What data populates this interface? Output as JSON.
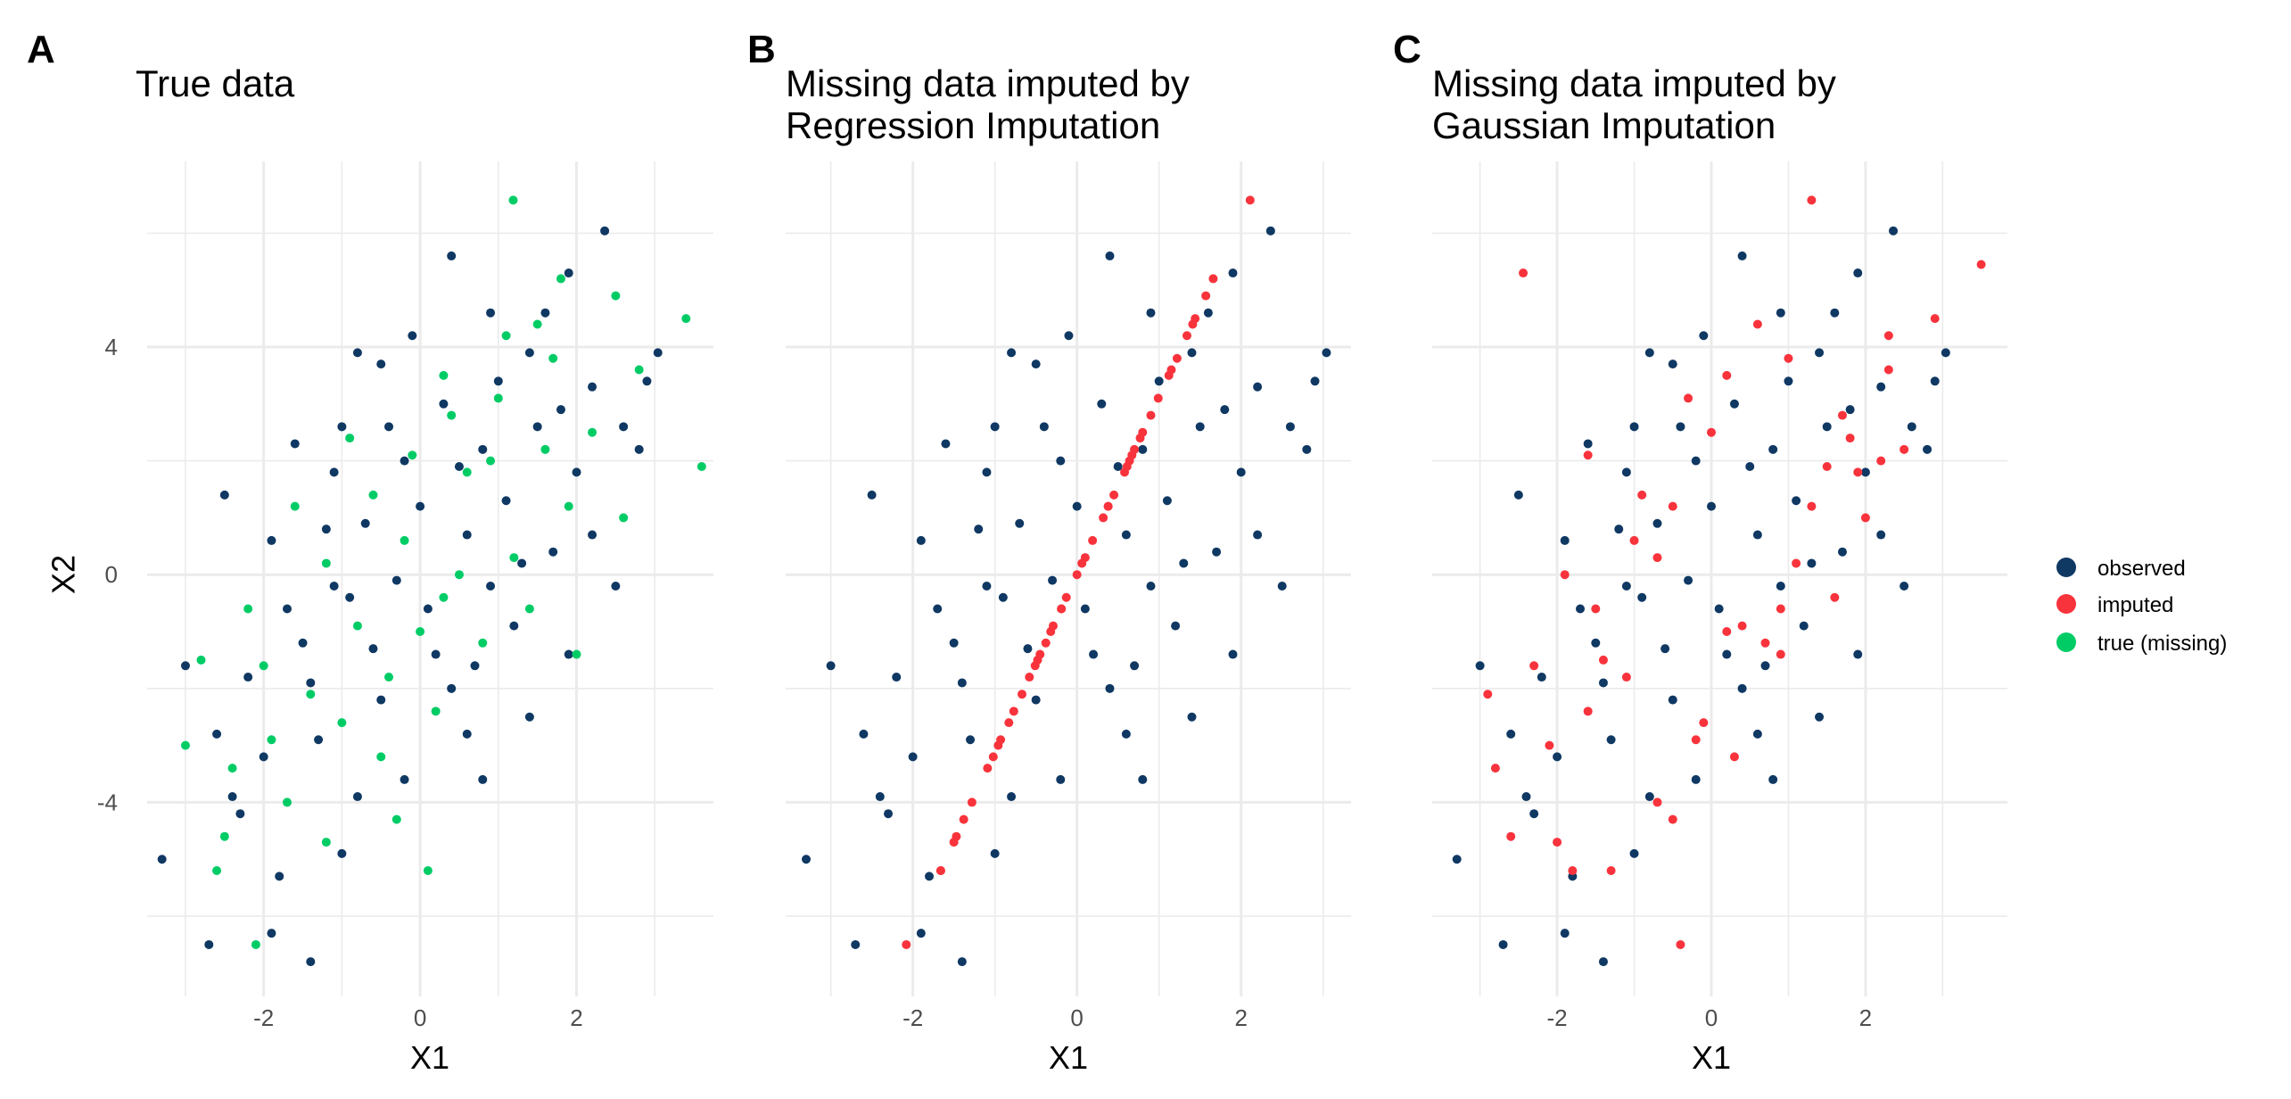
{
  "colors": {
    "observed": "#0f3863",
    "imputed": "#f8333c",
    "true_missing": "#00cc66",
    "grid": "#ebebeb"
  },
  "legend": {
    "position": "right",
    "items": [
      {
        "label": "observed",
        "color_key": "observed"
      },
      {
        "label": "imputed",
        "color_key": "imputed"
      },
      {
        "label": "true (missing)",
        "color_key": "true_missing"
      }
    ]
  },
  "chart_data": [
    {
      "type": "scatter",
      "tag": "A",
      "title": [
        "True data"
      ],
      "xlabel": "X1",
      "ylabel": "X2",
      "xlim": [
        -3.49,
        3.75
      ],
      "ylim": [
        -7.41,
        7.26
      ],
      "xticks": [
        -2,
        0,
        2
      ],
      "yticks": [
        -4,
        0,
        4
      ],
      "grid": true,
      "series_keys": [
        "observed",
        "true_missing"
      ]
    },
    {
      "type": "scatter",
      "tag": "B",
      "title": [
        "Missing data imputed by",
        "Regression Imputation"
      ],
      "xlabel": "X1",
      "ylabel": "",
      "xlim": [
        -3.55,
        3.34
      ],
      "ylim": [
        -7.41,
        7.26
      ],
      "xticks": [
        -2,
        0,
        2
      ],
      "yticks": [
        -4,
        0,
        4
      ],
      "grid": true,
      "series_keys": [
        "observed",
        "regression_imputed"
      ]
    },
    {
      "type": "scatter",
      "tag": "C",
      "title": [
        "Missing data imputed by",
        "Gaussian Imputation"
      ],
      "xlabel": "X1",
      "ylabel": "",
      "xlim": [
        -3.62,
        3.84
      ],
      "ylim": [
        -7.41,
        7.26
      ],
      "xticks": [
        -2,
        0,
        2
      ],
      "yticks": [
        -4,
        0,
        4
      ],
      "grid": true,
      "series_keys": [
        "observed",
        "gaussian_imputed"
      ]
    }
  ],
  "points": {
    "observed": [
      [
        2.36,
        6.04
      ],
      [
        0.4,
        5.6
      ],
      [
        1.9,
        5.3
      ],
      [
        0.9,
        4.6
      ],
      [
        -0.8,
        3.9
      ],
      [
        -0.5,
        3.7
      ],
      [
        1.4,
        3.9
      ],
      [
        3.04,
        3.9
      ],
      [
        2.6,
        2.6
      ],
      [
        2.2,
        3.3
      ],
      [
        -1.6,
        2.3
      ],
      [
        -1.1,
        1.8
      ],
      [
        -2.5,
        1.4
      ],
      [
        -1.9,
        0.6
      ],
      [
        -1.2,
        0.8
      ],
      [
        -0.4,
        2.6
      ],
      [
        0.3,
        3.0
      ],
      [
        0.8,
        2.2
      ],
      [
        1.5,
        2.6
      ],
      [
        2.0,
        1.8
      ],
      [
        1.7,
        0.4
      ],
      [
        2.5,
        -0.2
      ],
      [
        1.2,
        -0.9
      ],
      [
        0.6,
        0.7
      ],
      [
        0.0,
        1.2
      ],
      [
        -0.3,
        -0.1
      ],
      [
        -0.9,
        -0.4
      ],
      [
        -1.5,
        -1.2
      ],
      [
        -2.2,
        -1.8
      ],
      [
        -3.0,
        -1.6
      ],
      [
        -3.3,
        -5.0
      ],
      [
        -2.7,
        -6.5
      ],
      [
        -1.4,
        -6.8
      ],
      [
        -1.9,
        -6.3
      ],
      [
        -2.3,
        -4.2
      ],
      [
        -1.8,
        -5.3
      ],
      [
        -1.0,
        -4.9
      ],
      [
        -0.8,
        -3.9
      ],
      [
        -0.2,
        -3.6
      ],
      [
        0.6,
        -2.8
      ],
      [
        1.4,
        -2.5
      ],
      [
        1.9,
        -1.4
      ],
      [
        0.9,
        -0.2
      ],
      [
        0.2,
        -1.4
      ],
      [
        -0.5,
        -2.2
      ],
      [
        -1.3,
        -2.9
      ],
      [
        -2.0,
        -3.2
      ],
      [
        -2.6,
        -2.8
      ],
      [
        -1.7,
        -0.6
      ],
      [
        -0.7,
        0.9
      ],
      [
        0.5,
        1.9
      ],
      [
        1.1,
        1.3
      ],
      [
        1.8,
        2.9
      ],
      [
        2.8,
        2.2
      ],
      [
        2.2,
        0.7
      ],
      [
        1.0,
        3.4
      ],
      [
        -0.2,
        2.0
      ],
      [
        -1.0,
        2.6
      ],
      [
        0.1,
        -0.6
      ],
      [
        -0.6,
        -1.3
      ],
      [
        0.4,
        -2.0
      ],
      [
        1.3,
        0.2
      ],
      [
        -1.4,
        -1.9
      ],
      [
        -2.4,
        -3.9
      ],
      [
        0.8,
        -3.6
      ],
      [
        1.6,
        4.6
      ],
      [
        -0.1,
        4.2
      ],
      [
        0.7,
        -1.6
      ],
      [
        -1.1,
        -0.2
      ],
      [
        2.9,
        3.4
      ]
    ],
    "true_missing": [
      [
        1.19,
        6.58
      ],
      [
        1.8,
        5.2
      ],
      [
        2.5,
        4.9
      ],
      [
        3.4,
        4.5
      ],
      [
        3.6,
        1.9
      ],
      [
        2.8,
        3.6
      ],
      [
        1.5,
        4.4
      ],
      [
        0.3,
        3.5
      ],
      [
        -0.9,
        2.4
      ],
      [
        -1.6,
        1.2
      ],
      [
        -2.2,
        -0.6
      ],
      [
        -2.8,
        -1.5
      ],
      [
        -3.0,
        -3.0
      ],
      [
        -2.5,
        -4.6
      ],
      [
        -2.6,
        -5.2
      ],
      [
        -2.1,
        -6.5
      ],
      [
        -1.2,
        -4.7
      ],
      [
        -0.3,
        -4.3
      ],
      [
        0.1,
        -5.2
      ],
      [
        -0.5,
        -3.2
      ],
      [
        0.2,
        -2.4
      ],
      [
        0.8,
        -1.2
      ],
      [
        1.2,
        0.3
      ],
      [
        1.9,
        1.2
      ],
      [
        2.2,
        2.5
      ],
      [
        0.6,
        1.8
      ],
      [
        -0.2,
        0.6
      ],
      [
        -0.8,
        -0.9
      ],
      [
        -1.4,
        -2.1
      ],
      [
        -1.9,
        -2.9
      ],
      [
        0.4,
        2.8
      ],
      [
        1.0,
        3.1
      ],
      [
        1.6,
        2.2
      ],
      [
        2.0,
        -1.4
      ],
      [
        1.4,
        -0.6
      ],
      [
        -0.6,
        1.4
      ],
      [
        -1.2,
        0.2
      ],
      [
        -2.0,
        -1.6
      ],
      [
        0.0,
        -1.0
      ],
      [
        0.5,
        0.0
      ],
      [
        -1.0,
        -2.6
      ],
      [
        -0.4,
        -1.8
      ],
      [
        0.9,
        2.0
      ],
      [
        -2.4,
        -3.4
      ],
      [
        1.7,
        3.8
      ],
      [
        2.6,
        1.0
      ],
      [
        -1.7,
        -4.0
      ],
      [
        0.3,
        -0.4
      ],
      [
        -0.1,
        2.1
      ],
      [
        1.1,
        4.2
      ]
    ],
    "regression_imputed": [
      [
        2.11,
        6.58
      ],
      [
        1.66,
        5.2
      ],
      [
        1.57,
        4.9
      ],
      [
        1.44,
        4.5
      ],
      [
        0.61,
        1.9
      ],
      [
        1.15,
        3.6
      ],
      [
        1.41,
        4.4
      ],
      [
        1.12,
        3.5
      ],
      [
        0.77,
        2.4
      ],
      [
        0.38,
        1.2
      ],
      [
        -0.19,
        -0.6
      ],
      [
        -0.48,
        -1.5
      ],
      [
        -0.96,
        -3.0
      ],
      [
        -1.47,
        -4.6
      ],
      [
        -1.66,
        -5.2
      ],
      [
        -2.08,
        -6.5
      ],
      [
        -1.5,
        -4.7
      ],
      [
        -1.38,
        -4.3
      ],
      [
        -1.66,
        -5.2
      ],
      [
        -1.02,
        -3.2
      ],
      [
        -0.77,
        -2.4
      ],
      [
        -0.38,
        -1.2
      ],
      [
        0.1,
        0.3
      ],
      [
        0.38,
        1.2
      ],
      [
        0.8,
        2.5
      ],
      [
        0.58,
        1.8
      ],
      [
        0.19,
        0.6
      ],
      [
        -0.29,
        -0.9
      ],
      [
        -0.67,
        -2.1
      ],
      [
        -0.93,
        -2.9
      ],
      [
        0.9,
        2.8
      ],
      [
        0.99,
        3.1
      ],
      [
        0.7,
        2.2
      ],
      [
        -0.45,
        -1.4
      ],
      [
        -0.19,
        -0.6
      ],
      [
        0.45,
        1.4
      ],
      [
        0.06,
        0.2
      ],
      [
        -0.51,
        -1.6
      ],
      [
        -0.32,
        -1.0
      ],
      [
        0.0,
        0.0
      ],
      [
        -0.83,
        -2.6
      ],
      [
        -0.58,
        -1.8
      ],
      [
        0.64,
        2.0
      ],
      [
        -1.09,
        -3.4
      ],
      [
        1.22,
        3.8
      ],
      [
        0.32,
        1.0
      ],
      [
        -1.28,
        -4.0
      ],
      [
        -0.13,
        -0.4
      ],
      [
        0.67,
        2.1
      ],
      [
        1.34,
        4.2
      ]
    ],
    "gaussian_imputed": [
      [
        1.3,
        6.58
      ],
      [
        3.5,
        5.45
      ],
      [
        -2.44,
        5.3
      ],
      [
        2.9,
        4.5
      ],
      [
        1.5,
        1.9
      ],
      [
        2.3,
        3.6
      ],
      [
        0.6,
        4.4
      ],
      [
        0.2,
        3.5
      ],
      [
        1.8,
        2.4
      ],
      [
        -0.5,
        1.2
      ],
      [
        0.9,
        -0.6
      ],
      [
        -1.4,
        -1.5
      ],
      [
        -2.1,
        -3.0
      ],
      [
        -2.6,
        -4.6
      ],
      [
        -1.3,
        -5.2
      ],
      [
        -0.4,
        -6.5
      ],
      [
        -2.0,
        -4.7
      ],
      [
        -0.5,
        -4.3
      ],
      [
        -1.8,
        -5.2
      ],
      [
        0.3,
        -3.2
      ],
      [
        -1.6,
        -2.4
      ],
      [
        0.7,
        -1.2
      ],
      [
        -0.7,
        0.3
      ],
      [
        1.3,
        1.2
      ],
      [
        0.0,
        2.5
      ],
      [
        1.9,
        1.8
      ],
      [
        -1.0,
        0.6
      ],
      [
        0.4,
        -0.9
      ],
      [
        -2.9,
        -2.1
      ],
      [
        -0.2,
        -2.9
      ],
      [
        1.7,
        2.8
      ],
      [
        -0.3,
        3.1
      ],
      [
        2.5,
        2.2
      ],
      [
        0.9,
        -1.4
      ],
      [
        -1.5,
        -0.6
      ],
      [
        -0.9,
        1.4
      ],
      [
        1.1,
        0.2
      ],
      [
        -2.3,
        -1.6
      ],
      [
        0.2,
        -1.0
      ],
      [
        -1.9,
        0.0
      ],
      [
        -0.1,
        -2.6
      ],
      [
        -1.1,
        -1.8
      ],
      [
        2.2,
        2.0
      ],
      [
        -2.8,
        -3.4
      ],
      [
        1.0,
        3.8
      ],
      [
        2.0,
        1.0
      ],
      [
        -0.7,
        -4.0
      ],
      [
        1.6,
        -0.4
      ],
      [
        -1.6,
        2.1
      ],
      [
        2.3,
        4.2
      ]
    ]
  }
}
